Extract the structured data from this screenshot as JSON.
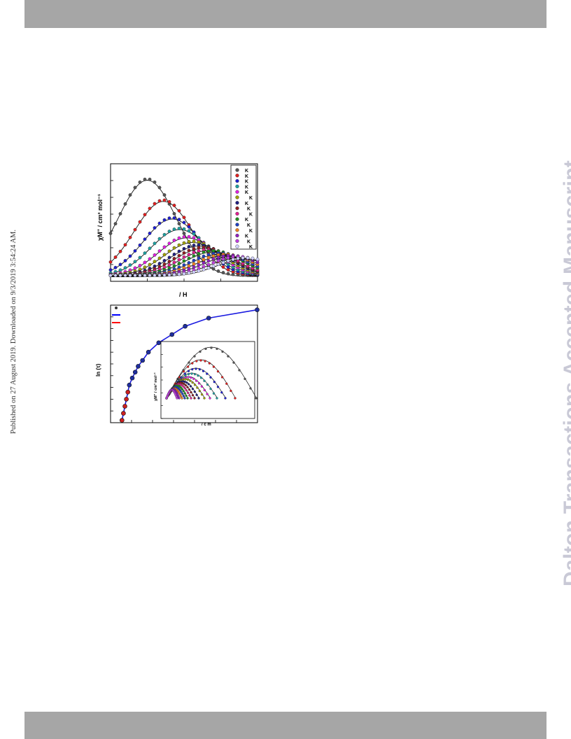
{
  "header": {
    "bar_color": "#a6a6a6"
  },
  "footer": {
    "bar_color": "#a6a6a6"
  },
  "sidebar_left": {
    "text": "Published on 27 August 2019. Downloaded on 9/3/2019 3:54:24 AM."
  },
  "watermark": {
    "text": "Dalton Transactions Accepted Manuscript",
    "color": "#c9c9d6"
  },
  "figure_top": {
    "ylabel": "χM\" / cm³ mol⁻¹",
    "xlabel": "/ H",
    "legend_labels": [
      "K",
      "K",
      "K",
      "K",
      "K",
      "K",
      "K",
      "K",
      "K",
      "K",
      "K",
      "K",
      "K",
      "K",
      "K"
    ],
    "series_colors": [
      "#555555",
      "#e02020",
      "#2020d0",
      "#20a0a0",
      "#e020e0",
      "#a0a000",
      "#202080",
      "#902020",
      "#e02090",
      "#209020",
      "#2040c0",
      "#f08020",
      "#9020c0",
      "#c040e0",
      "#d0d0ff"
    ]
  },
  "figure_bottom": {
    "ylabel": "ln (τ)",
    "legend_colors": [
      "#0000ff",
      "#ff0000"
    ],
    "inset_ylabel": "χM\" / cm³ mol⁻¹",
    "inset_xlabel": "/ c   m"
  },
  "chart_data": [
    {
      "type": "line",
      "title": "",
      "xlabel": "/ H",
      "ylabel": "χM\" / cm³ mol⁻¹",
      "x_scale": "log",
      "series": [
        {
          "name": "K",
          "peak_x": 0.25,
          "peak_y": 0.86
        },
        {
          "name": "K",
          "peak_x": 0.36,
          "peak_y": 0.68
        },
        {
          "name": "K",
          "peak_x": 0.42,
          "peak_y": 0.53
        },
        {
          "name": "K",
          "peak_x": 0.47,
          "peak_y": 0.44
        },
        {
          "name": "K",
          "peak_x": 0.52,
          "peak_y": 0.37
        },
        {
          "name": "K",
          "peak_x": 0.56,
          "peak_y": 0.33
        },
        {
          "name": "K",
          "peak_x": 0.6,
          "peak_y": 0.3
        },
        {
          "name": "K",
          "peak_x": 0.63,
          "peak_y": 0.28
        },
        {
          "name": "K",
          "peak_x": 0.66,
          "peak_y": 0.26
        },
        {
          "name": "K",
          "peak_x": 0.7,
          "peak_y": 0.25
        },
        {
          "name": "K",
          "peak_x": 0.74,
          "peak_y": 0.23
        },
        {
          "name": "K",
          "peak_x": 0.78,
          "peak_y": 0.22
        },
        {
          "name": "K",
          "peak_x": 0.82,
          "peak_y": 0.21
        },
        {
          "name": "K",
          "peak_x": 0.87,
          "peak_y": 0.2
        },
        {
          "name": "K",
          "peak_x": 0.92,
          "peak_y": 0.19
        }
      ]
    },
    {
      "type": "scatter",
      "title": "",
      "xlabel": "",
      "ylabel": "ln (τ)",
      "points": [
        {
          "x": 0.03,
          "y": 0.02
        },
        {
          "x": 0.04,
          "y": 0.08
        },
        {
          "x": 0.05,
          "y": 0.14
        },
        {
          "x": 0.06,
          "y": 0.2
        },
        {
          "x": 0.07,
          "y": 0.26
        },
        {
          "x": 0.08,
          "y": 0.32
        },
        {
          "x": 0.1,
          "y": 0.38
        },
        {
          "x": 0.12,
          "y": 0.43
        },
        {
          "x": 0.14,
          "y": 0.48
        },
        {
          "x": 0.17,
          "y": 0.53
        },
        {
          "x": 0.21,
          "y": 0.6
        },
        {
          "x": 0.28,
          "y": 0.68
        },
        {
          "x": 0.37,
          "y": 0.75
        },
        {
          "x": 0.46,
          "y": 0.82
        },
        {
          "x": 0.62,
          "y": 0.89
        },
        {
          "x": 0.95,
          "y": 0.96
        }
      ],
      "fit_colors": [
        "#0000ff",
        "#ff0000"
      ]
    }
  ]
}
